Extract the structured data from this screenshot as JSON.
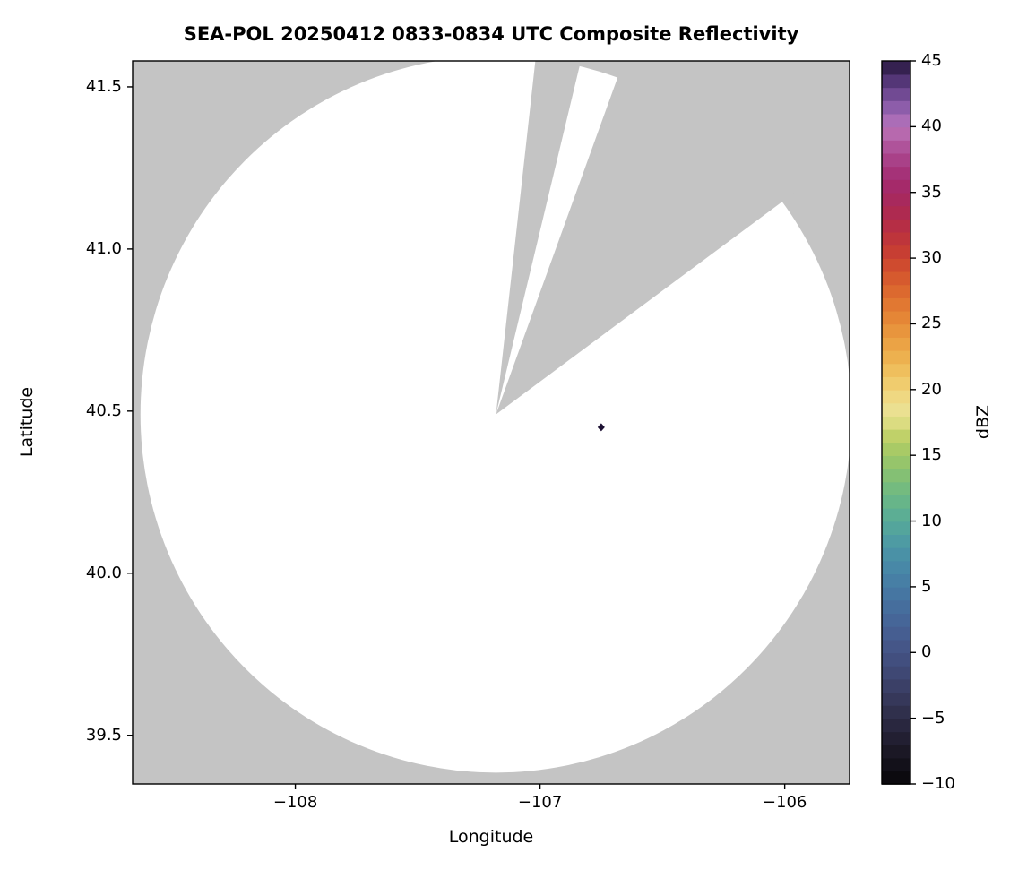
{
  "chart_data": {
    "type": "radar_composite_reflectivity_map",
    "title": "SEA-POL 20250412 0833-0834 UTC Composite Reflectivity",
    "xlabel": "Longitude",
    "ylabel": "Latitude",
    "xlim": [
      -108.665,
      -105.735
    ],
    "ylim": [
      39.35,
      41.58
    ],
    "xticks": {
      "values": [
        -108,
        -107,
        -106
      ],
      "labels": [
        "−108",
        "−107",
        "−106"
      ]
    },
    "yticks": {
      "values": [
        39.5,
        40.0,
        40.5,
        41.0,
        41.5
      ],
      "labels": [
        "39.5",
        "40.0",
        "40.5",
        "41.0",
        "41.5"
      ]
    },
    "colors": {
      "outside_scan": "#c4c4c4",
      "scan_area": "#ffffff",
      "spine": "#000000",
      "text": "#000000"
    },
    "radar": {
      "center_lon": -107.18,
      "center_lat": 40.49,
      "range_deg_lat": 1.105,
      "blocked_sectors_deg_from_north": [
        [
          6.4,
          14.5
        ],
        [
          20.0,
          54.6
        ]
      ]
    },
    "echoes": [
      {
        "lon": -106.75,
        "lat": 40.45,
        "dbz": 45,
        "color": "#1d1133"
      }
    ],
    "colorbar": {
      "label": "dBZ",
      "min": -10,
      "max": 45,
      "ticks": {
        "values": [
          -10,
          -5,
          0,
          5,
          10,
          15,
          20,
          25,
          30,
          35,
          40,
          45
        ],
        "labels": [
          "−10",
          "−5",
          "0",
          "5",
          "10",
          "15",
          "20",
          "25",
          "30",
          "35",
          "40",
          "45"
        ]
      },
      "stops": [
        {
          "v": -10,
          "c": "#080709"
        },
        {
          "v": -8,
          "c": "#17141f"
        },
        {
          "v": -6,
          "c": "#262338"
        },
        {
          "v": -4,
          "c": "#333453"
        },
        {
          "v": -2,
          "c": "#3d446e"
        },
        {
          "v": 0,
          "c": "#445284"
        },
        {
          "v": 2,
          "c": "#466295"
        },
        {
          "v": 4,
          "c": "#4672a0"
        },
        {
          "v": 6,
          "c": "#4783a7"
        },
        {
          "v": 8,
          "c": "#4b96a6"
        },
        {
          "v": 10,
          "c": "#57aa99"
        },
        {
          "v": 12,
          "c": "#6cb884"
        },
        {
          "v": 14,
          "c": "#8cc26e"
        },
        {
          "v": 16,
          "c": "#b3cc63"
        },
        {
          "v": 17,
          "c": "#cdd56f"
        },
        {
          "v": 18,
          "c": "#e8e393"
        },
        {
          "v": 19,
          "c": "#eedd8e"
        },
        {
          "v": 20,
          "c": "#f0d276"
        },
        {
          "v": 22,
          "c": "#eeb854"
        },
        {
          "v": 24,
          "c": "#ea9c40"
        },
        {
          "v": 26,
          "c": "#e37f33"
        },
        {
          "v": 28,
          "c": "#d9612e"
        },
        {
          "v": 30,
          "c": "#cb432f"
        },
        {
          "v": 32,
          "c": "#ba303f"
        },
        {
          "v": 34,
          "c": "#aa2856"
        },
        {
          "v": 36,
          "c": "#a32b70"
        },
        {
          "v": 38,
          "c": "#ab4890"
        },
        {
          "v": 40,
          "c": "#bb74b8"
        },
        {
          "v": 41,
          "c": "#9a66b5"
        },
        {
          "v": 42,
          "c": "#7f539f"
        },
        {
          "v": 43,
          "c": "#634087"
        },
        {
          "v": 44,
          "c": "#452c66"
        },
        {
          "v": 45,
          "c": "#251539"
        }
      ]
    }
  }
}
